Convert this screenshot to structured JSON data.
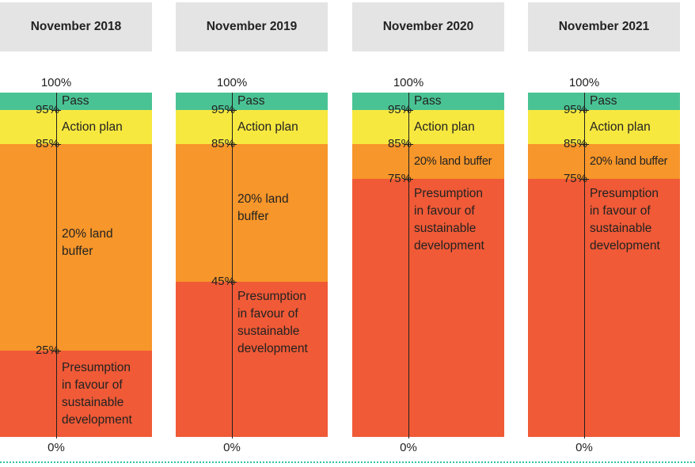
{
  "chart_data": {
    "type": "stacked-bar",
    "ylim": [
      0,
      100
    ],
    "tick_suffix": "%",
    "colors": {
      "Pass": "#4ac394",
      "Action plan": "#f7e83f",
      "20% land buffer": "#f7962a",
      "Presumption in favour of sustainable development": "#f05a36"
    },
    "panels": [
      {
        "title": "November 2018",
        "bands": [
          {
            "name": "Pass",
            "label": "Pass",
            "from": 95,
            "to": 100
          },
          {
            "name": "Action plan",
            "label": "Action plan",
            "from": 85,
            "to": 95
          },
          {
            "name": "20% land buffer",
            "label": "20% land\nbuffer",
            "from": 25,
            "to": 85
          },
          {
            "name": "Presumption in favour of sustainable development",
            "label": "Presumption\nin favour of\nsustainable\ndevelopment",
            "from": 0,
            "to": 25
          }
        ],
        "ticks": [
          {
            "label": "100%",
            "value": 100
          },
          {
            "label": "95%",
            "value": 95
          },
          {
            "label": "85%",
            "value": 85
          },
          {
            "label": "25%",
            "value": 25
          },
          {
            "label": "0%",
            "value": 0
          }
        ]
      },
      {
        "title": "November 2019",
        "bands": [
          {
            "name": "Pass",
            "label": "Pass",
            "from": 95,
            "to": 100
          },
          {
            "name": "Action plan",
            "label": "Action plan",
            "from": 85,
            "to": 95
          },
          {
            "name": "20% land buffer",
            "label": "20% land\nbuffer",
            "from": 45,
            "to": 85
          },
          {
            "name": "Presumption in favour of sustainable development",
            "label": "Presumption\nin favour of\nsustainable\ndevelopment",
            "from": 0,
            "to": 45
          }
        ],
        "ticks": [
          {
            "label": "100%",
            "value": 100
          },
          {
            "label": "95%",
            "value": 95
          },
          {
            "label": "85%",
            "value": 85
          },
          {
            "label": "45%",
            "value": 45
          },
          {
            "label": "0%",
            "value": 0
          }
        ]
      },
      {
        "title": "November 2020",
        "bands": [
          {
            "name": "Pass",
            "label": "Pass",
            "from": 95,
            "to": 100
          },
          {
            "name": "Action plan",
            "label": "Action plan",
            "from": 85,
            "to": 95
          },
          {
            "name": "20% land buffer",
            "label": "20% land buffer",
            "from": 75,
            "to": 85
          },
          {
            "name": "Presumption in favour of sustainable development",
            "label": "Presumption\nin favour of\nsustainable\ndevelopment",
            "from": 0,
            "to": 75
          }
        ],
        "ticks": [
          {
            "label": "100%",
            "value": 100
          },
          {
            "label": "95%",
            "value": 95
          },
          {
            "label": "85%",
            "value": 85
          },
          {
            "label": "75%",
            "value": 75
          },
          {
            "label": "0%",
            "value": 0
          }
        ]
      },
      {
        "title": "November 2021",
        "bands": [
          {
            "name": "Pass",
            "label": "Pass",
            "from": 95,
            "to": 100
          },
          {
            "name": "Action plan",
            "label": "Action plan",
            "from": 85,
            "to": 95
          },
          {
            "name": "20% land buffer",
            "label": "20% land buffer",
            "from": 75,
            "to": 85
          },
          {
            "name": "Presumption in favour of sustainable development",
            "label": "Presumption\nin favour of\nsustainable\ndevelopment",
            "from": 0,
            "to": 75
          }
        ],
        "ticks": [
          {
            "label": "100%",
            "value": 100
          },
          {
            "label": "95%",
            "value": 95
          },
          {
            "label": "85%",
            "value": 85
          },
          {
            "label": "75%",
            "value": 75
          },
          {
            "label": "0%",
            "value": 0
          }
        ]
      }
    ]
  }
}
